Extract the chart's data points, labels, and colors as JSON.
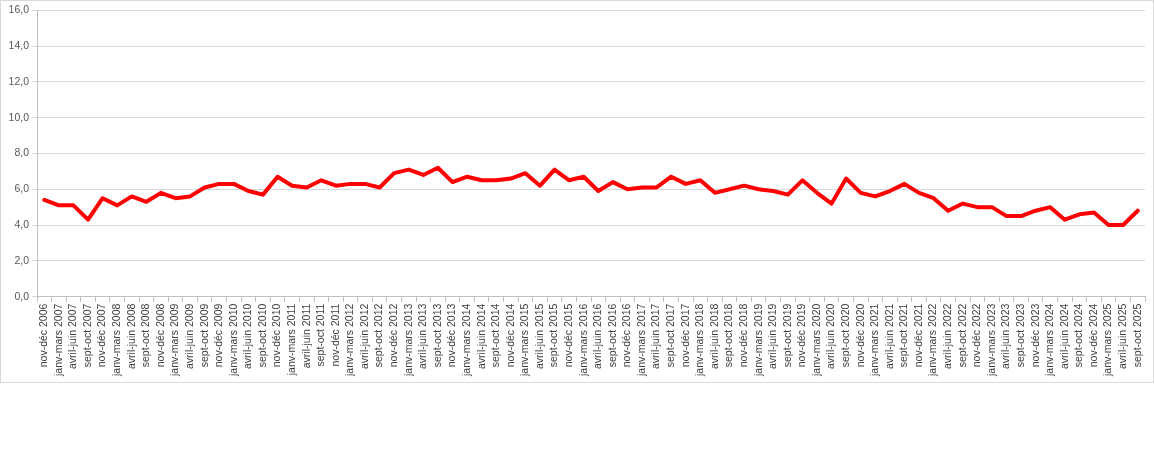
{
  "chart_data": {
    "type": "line",
    "categories": [
      "nov-déc 2006",
      "janv-mars 2007",
      "avril-juin 2007",
      "sept-oct 2007",
      "nov-déc 2007",
      "janv-mars 2008",
      "avril-juin 2008",
      "sept-oct 2008",
      "nov-déc 2008",
      "janv-mars 2009",
      "avril-juin 2009",
      "sept-oct 2009",
      "nov-déc 2009",
      "janv-mars 2010",
      "avril-juin 2010",
      "sept-oct 2010",
      "nov-déc 2010",
      "janv-mars 2011",
      "avril-juin 2011",
      "sept-oct 2011",
      "nov-déc 2011",
      "janv-mars 2012",
      "avril-juin 2012",
      "sept-oct 2012",
      "nov-déc 2012",
      "janv-mars 2013",
      "avril-juin 2013",
      "sept-oct 2013",
      "nov-déc 2013",
      "janv-mars 2014",
      "avril-juin 2014",
      "sept-oct 2014",
      "nov-déc 2014",
      "janv-mars 2015",
      "avril-juin 2015",
      "sept-oct 2015",
      "nov-déc 2015",
      "janv-mars 2016",
      "avril-juin 2016",
      "sept-oct 2016",
      "nov-déc 2016",
      "janv-mars 2017",
      "avril-juin 2017",
      "sept-oct 2017",
      "nov-déc 2017",
      "janv-mars 2018",
      "avril-juin 2018",
      "sept-oct 2018",
      "nov-déc 2018",
      "janv-mars 2019",
      "avril-juin 2019",
      "sept-oct 2019",
      "nov-déc 2019",
      "janv-mars 2020",
      "avril-juin 2020",
      "sept-oct 2020",
      "nov-déc 2020",
      "janv-mars 2021",
      "avril-juin 2021",
      "sept-oct 2021",
      "nov-déc 2021",
      "janv-mars 2022",
      "avril-juin 2022",
      "sept-oct 2022",
      "nov-déc 2022",
      "janv-mars 2023",
      "avril-juin 2023",
      "sept-oct 2023",
      "nov-déc 2023",
      "janv-mars 2024",
      "avril-juin 2024",
      "sept-oct 2024",
      "nov-déc 2024",
      "janv-mars 2025",
      "avril-juin 2025",
      "sept-oct 2025"
    ],
    "series": [
      {
        "color": "#ff0000",
        "values": [
          5.4,
          5.1,
          5.1,
          4.3,
          5.5,
          5.1,
          5.6,
          5.3,
          5.8,
          5.5,
          5.6,
          6.1,
          6.3,
          6.3,
          5.9,
          5.7,
          6.7,
          6.2,
          6.1,
          6.5,
          6.2,
          6.3,
          6.3,
          6.1,
          6.9,
          7.1,
          6.8,
          7.2,
          6.4,
          6.7,
          6.5,
          6.5,
          6.6,
          6.9,
          6.2,
          7.1,
          6.5,
          6.7,
          5.9,
          6.4,
          6.0,
          6.1,
          6.1,
          6.7,
          6.3,
          6.5,
          5.8,
          6.0,
          6.2,
          6.0,
          5.9,
          5.7,
          6.5,
          5.8,
          5.2,
          6.6,
          5.8,
          5.6,
          5.9,
          6.3,
          5.8,
          5.5,
          4.8,
          5.2,
          5.0,
          5.0,
          4.5,
          4.5,
          4.8,
          5.0,
          4.3,
          4.6,
          4.7,
          4.0,
          4.0,
          4.8
        ]
      }
    ],
    "ylim": [
      0,
      16
    ],
    "yticks": [
      {
        "value": 0,
        "label": "0,0"
      },
      {
        "value": 2,
        "label": "2,0"
      },
      {
        "value": 4,
        "label": "4,0"
      },
      {
        "value": 6,
        "label": "6,0"
      },
      {
        "value": 8,
        "label": "8,0"
      },
      {
        "value": 10,
        "label": "10,0"
      },
      {
        "value": 12,
        "label": "12,0"
      },
      {
        "value": 14,
        "label": "14,0"
      },
      {
        "value": 16,
        "label": "16,0"
      }
    ],
    "grid": "y",
    "marker": "none",
    "line_style": "solid"
  }
}
